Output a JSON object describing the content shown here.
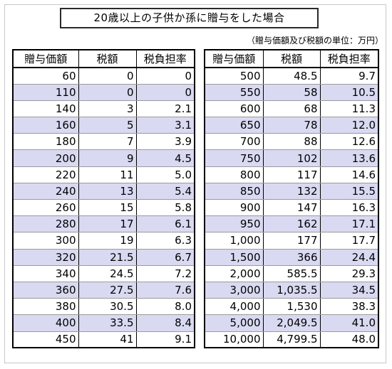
{
  "title": "20歳以上の子供か孫に贈与をした場合",
  "unit_note": "（贈与価額及び税額の単位：万円）",
  "headers": [
    "贈与価額",
    "税額",
    "税負担率"
  ],
  "colors": {
    "stripe": "#d9d9f2",
    "border": "#000000"
  },
  "left_rows": [
    [
      "60",
      "0",
      "0"
    ],
    [
      "110",
      "0",
      "0"
    ],
    [
      "140",
      "3",
      "2.1"
    ],
    [
      "160",
      "5",
      "3.1"
    ],
    [
      "180",
      "7",
      "3.9"
    ],
    [
      "200",
      "9",
      "4.5"
    ],
    [
      "220",
      "11",
      "5.0"
    ],
    [
      "240",
      "13",
      "5.4"
    ],
    [
      "260",
      "15",
      "5.8"
    ],
    [
      "280",
      "17",
      "6.1"
    ],
    [
      "300",
      "19",
      "6.3"
    ],
    [
      "320",
      "21.5",
      "6.7"
    ],
    [
      "340",
      "24.5",
      "7.2"
    ],
    [
      "360",
      "27.5",
      "7.6"
    ],
    [
      "380",
      "30.5",
      "8.0"
    ],
    [
      "400",
      "33.5",
      "8.4"
    ],
    [
      "450",
      "41",
      "9.1"
    ]
  ],
  "right_rows": [
    [
      "500",
      "48.5",
      "9.7"
    ],
    [
      "550",
      "58",
      "10.5"
    ],
    [
      "600",
      "68",
      "11.3"
    ],
    [
      "650",
      "78",
      "12.0"
    ],
    [
      "700",
      "88",
      "12.6"
    ],
    [
      "750",
      "102",
      "13.6"
    ],
    [
      "800",
      "117",
      "14.6"
    ],
    [
      "850",
      "132",
      "15.5"
    ],
    [
      "900",
      "147",
      "16.3"
    ],
    [
      "950",
      "162",
      "17.1"
    ],
    [
      "1,000",
      "177",
      "17.7"
    ],
    [
      "1,500",
      "366",
      "24.4"
    ],
    [
      "2,000",
      "585.5",
      "29.3"
    ],
    [
      "3,000",
      "1,035.5",
      "34.5"
    ],
    [
      "4,000",
      "1,530",
      "38.3"
    ],
    [
      "5,000",
      "2,049.5",
      "41.0"
    ],
    [
      "10,000",
      "4,799.5",
      "48.0"
    ]
  ]
}
